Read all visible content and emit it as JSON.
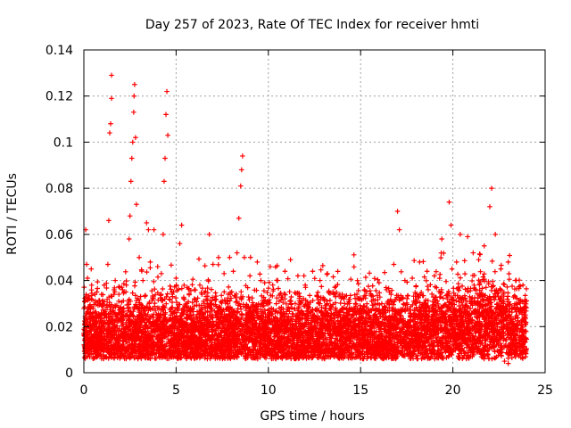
{
  "chart_data": {
    "type": "scatter",
    "title": "Day 257 of 2023, Rate Of TEC Index for receiver hmti",
    "xlabel": "GPS time / hours",
    "ylabel": "ROTI / TECUs",
    "xlim": [
      0,
      25
    ],
    "ylim": [
      0,
      0.14
    ],
    "xticks": [
      0,
      5,
      10,
      15,
      20,
      25
    ],
    "xtick_labels": [
      "0",
      "5",
      "10",
      "15",
      "20",
      "25"
    ],
    "yticks": [
      0,
      0.02,
      0.04,
      0.06,
      0.08,
      0.1,
      0.12,
      0.14
    ],
    "ytick_labels": [
      "0",
      "0.02",
      "0.04",
      "0.06",
      "0.08",
      "0.1",
      "0.12",
      "0.14"
    ],
    "grid": true,
    "marker": "+",
    "color": "#ff0000",
    "series": [
      {
        "name": "ROTI",
        "points": [
          [
            0.05,
            0.014
          ],
          [
            0.1,
            0.062
          ],
          [
            0.15,
            0.047
          ],
          [
            0.2,
            0.041
          ],
          [
            0.3,
            0.032
          ],
          [
            0.4,
            0.045
          ],
          [
            0.5,
            0.028
          ],
          [
            0.7,
            0.035
          ],
          [
            0.9,
            0.03
          ],
          [
            1.1,
            0.038
          ],
          [
            1.3,
            0.047
          ],
          [
            1.35,
            0.066
          ],
          [
            1.4,
            0.104
          ],
          [
            1.45,
            0.108
          ],
          [
            1.5,
            0.119
          ],
          [
            1.5,
            0.129
          ],
          [
            1.7,
            0.04
          ],
          [
            1.9,
            0.034
          ],
          [
            2.1,
            0.036
          ],
          [
            2.3,
            0.038
          ],
          [
            2.45,
            0.058
          ],
          [
            2.5,
            0.068
          ],
          [
            2.55,
            0.083
          ],
          [
            2.6,
            0.093
          ],
          [
            2.65,
            0.1
          ],
          [
            2.7,
            0.113
          ],
          [
            2.72,
            0.12
          ],
          [
            2.75,
            0.125
          ],
          [
            2.8,
            0.102
          ],
          [
            2.85,
            0.073
          ],
          [
            3.0,
            0.05
          ],
          [
            3.2,
            0.04
          ],
          [
            3.4,
            0.065
          ],
          [
            3.5,
            0.062
          ],
          [
            3.6,
            0.048
          ],
          [
            3.8,
            0.062
          ],
          [
            4.0,
            0.046
          ],
          [
            4.2,
            0.043
          ],
          [
            4.3,
            0.06
          ],
          [
            4.35,
            0.083
          ],
          [
            4.4,
            0.093
          ],
          [
            4.45,
            0.112
          ],
          [
            4.5,
            0.122
          ],
          [
            4.55,
            0.103
          ],
          [
            4.8,
            0.034
          ],
          [
            5.0,
            0.041
          ],
          [
            5.2,
            0.056
          ],
          [
            5.3,
            0.064
          ],
          [
            5.6,
            0.037
          ],
          [
            6.0,
            0.036
          ],
          [
            6.4,
            0.034
          ],
          [
            6.8,
            0.06
          ],
          [
            7.0,
            0.047
          ],
          [
            7.3,
            0.05
          ],
          [
            7.6,
            0.043
          ],
          [
            7.9,
            0.05
          ],
          [
            8.1,
            0.044
          ],
          [
            8.3,
            0.052
          ],
          [
            8.4,
            0.067
          ],
          [
            8.5,
            0.081
          ],
          [
            8.55,
            0.088
          ],
          [
            8.6,
            0.094
          ],
          [
            8.7,
            0.05
          ],
          [
            9.0,
            0.042
          ],
          [
            9.4,
            0.048
          ],
          [
            9.8,
            0.039
          ],
          [
            10.1,
            0.046
          ],
          [
            10.5,
            0.04
          ],
          [
            10.9,
            0.044
          ],
          [
            11.2,
            0.049
          ],
          [
            11.6,
            0.042
          ],
          [
            12.0,
            0.038
          ],
          [
            12.4,
            0.044
          ],
          [
            12.8,
            0.04
          ],
          [
            13.2,
            0.043
          ],
          [
            13.6,
            0.037
          ],
          [
            14.0,
            0.034
          ],
          [
            14.4,
            0.03
          ],
          [
            14.8,
            0.034
          ],
          [
            15.2,
            0.036
          ],
          [
            15.6,
            0.031
          ],
          [
            16.0,
            0.039
          ],
          [
            16.4,
            0.036
          ],
          [
            16.8,
            0.047
          ],
          [
            17.0,
            0.07
          ],
          [
            17.1,
            0.062
          ],
          [
            17.4,
            0.04
          ],
          [
            17.8,
            0.041
          ],
          [
            18.2,
            0.048
          ],
          [
            18.6,
            0.044
          ],
          [
            19.0,
            0.042
          ],
          [
            19.4,
            0.058
          ],
          [
            19.8,
            0.074
          ],
          [
            19.9,
            0.064
          ],
          [
            20.2,
            0.048
          ],
          [
            20.4,
            0.06
          ],
          [
            20.8,
            0.059
          ],
          [
            21.1,
            0.052
          ],
          [
            21.4,
            0.049
          ],
          [
            21.7,
            0.055
          ],
          [
            22.0,
            0.072
          ],
          [
            22.1,
            0.08
          ],
          [
            22.3,
            0.06
          ],
          [
            22.6,
            0.045
          ],
          [
            23.0,
            0.048
          ],
          [
            23.4,
            0.04
          ],
          [
            23.8,
            0.038
          ],
          [
            22.8,
            0.005
          ],
          [
            23.0,
            0.004
          ]
        ]
      }
    ]
  }
}
